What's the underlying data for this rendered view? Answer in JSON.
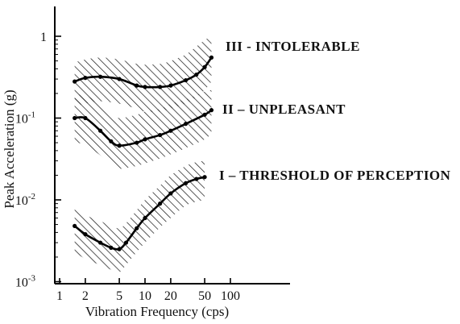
{
  "chart_data": {
    "type": "line",
    "title": "",
    "xlabel": "Vibration Frequency (cps)",
    "ylabel": "Peak Acceleration (g)",
    "x_scale": "log",
    "y_scale": "log",
    "xlim": [
      1,
      200
    ],
    "ylim": [
      0.001,
      2
    ],
    "grid": false,
    "legend": "none",
    "x_ticks": [
      {
        "value": 1,
        "label": "1"
      },
      {
        "value": 2,
        "label": "2"
      },
      {
        "value": 5,
        "label": "5"
      },
      {
        "value": 10,
        "label": "10"
      },
      {
        "value": 20,
        "label": "20"
      },
      {
        "value": 50,
        "label": "50"
      },
      {
        "value": 100,
        "label": "100"
      }
    ],
    "y_ticks": [
      {
        "value": 0.001,
        "label": "10",
        "exp": "-3"
      },
      {
        "value": 0.01,
        "label": "10",
        "exp": "-2"
      },
      {
        "value": 0.1,
        "label": "10",
        "exp": "-1"
      },
      {
        "value": 1,
        "label": "1",
        "exp": ""
      }
    ],
    "series": [
      {
        "name": "III - INTOLERABLE",
        "x": [
          1.5,
          2,
          3,
          5,
          8,
          10,
          15,
          20,
          30,
          40,
          50,
          60
        ],
        "y": [
          0.28,
          0.31,
          0.32,
          0.3,
          0.25,
          0.24,
          0.24,
          0.25,
          0.29,
          0.34,
          0.42,
          0.55
        ],
        "band_lower": [
          0.14,
          0.15,
          0.16,
          0.15,
          0.13,
          0.12,
          0.12,
          0.13,
          0.15,
          0.18,
          0.22,
          0.28
        ],
        "band_upper": [
          0.48,
          0.52,
          0.55,
          0.52,
          0.46,
          0.45,
          0.46,
          0.5,
          0.6,
          0.75,
          0.9,
          1.0
        ]
      },
      {
        "name": "II – UNPLEASANT",
        "x": [
          1.5,
          2,
          3,
          4,
          5,
          8,
          10,
          15,
          20,
          30,
          50,
          60
        ],
        "y": [
          0.1,
          0.1,
          0.07,
          0.052,
          0.046,
          0.05,
          0.055,
          0.062,
          0.07,
          0.085,
          0.11,
          0.125
        ],
        "band_lower": [
          0.05,
          0.047,
          0.035,
          0.027,
          0.024,
          0.026,
          0.028,
          0.032,
          0.036,
          0.043,
          0.055,
          0.065
        ],
        "band_upper": [
          0.19,
          0.19,
          0.15,
          0.115,
          0.1,
          0.11,
          0.12,
          0.13,
          0.15,
          0.17,
          0.21,
          0.22
        ]
      },
      {
        "name": "I – THRESHOLD OF PERCEPTION",
        "x": [
          1.5,
          2,
          3,
          4,
          5,
          6,
          8,
          10,
          15,
          20,
          30,
          40,
          50
        ],
        "y": [
          0.0048,
          0.0038,
          0.003,
          0.0026,
          0.0025,
          0.003,
          0.0045,
          0.006,
          0.009,
          0.012,
          0.016,
          0.018,
          0.019
        ],
        "band_lower": [
          0.0023,
          0.0019,
          0.0016,
          0.0014,
          0.0013,
          0.0016,
          0.0023,
          0.003,
          0.0046,
          0.006,
          0.0085,
          0.0095,
          0.01
        ],
        "band_upper": [
          0.0077,
          0.0065,
          0.0055,
          0.0048,
          0.0045,
          0.0052,
          0.0075,
          0.01,
          0.015,
          0.02,
          0.026,
          0.029,
          0.03
        ]
      }
    ]
  }
}
